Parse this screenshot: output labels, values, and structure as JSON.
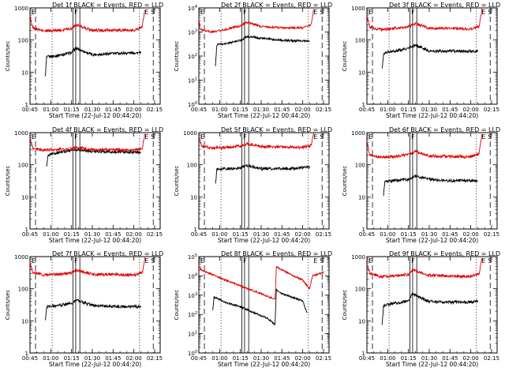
{
  "chart_data": [
    {
      "type": "line",
      "title": "Det 1f BLACK = Events, RED = LLD",
      "xlabel": "Start Time (22-Jul-12 00:44:20)",
      "ylabel": "Counts/sec",
      "yscale": "log",
      "ylim": [
        1,
        1000
      ],
      "xlim": [
        "00:45",
        "02:19"
      ],
      "y_tick_labels": [
        "1",
        "10",
        "100",
        "1000"
      ],
      "x_tick_labels": [
        "00:45",
        "01:00",
        "01:15",
        "01:30",
        "01:45",
        "02:00",
        "02:15"
      ],
      "markers": [
        "E",
        "S"
      ],
      "series": [
        {
          "name": "Events",
          "color": "#000000",
          "x": [
            "00:56",
            "00:57",
            "00:58",
            "01:05",
            "01:15",
            "01:18",
            "01:30",
            "01:45",
            "02:00",
            "02:05"
          ],
          "y": [
            7,
            28,
            30,
            33,
            40,
            55,
            35,
            38,
            40,
            40
          ]
        },
        {
          "name": "LLD",
          "color": "#e00000",
          "x": [
            "00:44",
            "00:47",
            "00:55",
            "01:05",
            "01:15",
            "01:18",
            "01:30",
            "01:45",
            "02:00",
            "02:06",
            "02:08"
          ],
          "y": [
            900,
            240,
            190,
            200,
            230,
            300,
            200,
            200,
            200,
            260,
            900
          ]
        }
      ]
    },
    {
      "type": "line",
      "title": "Det 2f BLACK = Events, RED = LLD",
      "xlabel": "Start Time (22-Jul-12 00:44:20)",
      "ylabel": "Counts/sec",
      "yscale": "log",
      "ylim": [
        1,
        10000
      ],
      "xlim": [
        "00:45",
        "02:19"
      ],
      "y_tick_labels": [
        "1",
        "10",
        "100",
        "1000",
        "10000"
      ],
      "x_tick_labels": [
        "00:45",
        "01:00",
        "01:15",
        "01:30",
        "01:45",
        "02:00",
        "02:15"
      ],
      "markers": [
        "E",
        "S"
      ],
      "series": [
        {
          "name": "Events",
          "color": "#000000",
          "x": [
            "00:57",
            "00:58",
            "01:05",
            "01:15",
            "01:20",
            "01:30",
            "01:45",
            "02:00",
            "02:05"
          ],
          "y": [
            40,
            300,
            330,
            450,
            650,
            550,
            450,
            420,
            420
          ]
        },
        {
          "name": "LLD",
          "color": "#e00000",
          "x": [
            "00:44",
            "00:46",
            "00:55",
            "01:05",
            "01:15",
            "01:20",
            "01:30",
            "01:45",
            "02:00",
            "02:06",
            "02:08"
          ],
          "y": [
            9000,
            1300,
            1000,
            1300,
            1800,
            2600,
            1700,
            1500,
            1500,
            2000,
            9000
          ]
        }
      ]
    },
    {
      "type": "line",
      "title": "Det 3f BLACK = Events, RED = LLD",
      "xlabel": "Start Time (22-Jul-12 00:44:20)",
      "ylabel": "Counts/sec",
      "yscale": "log",
      "ylim": [
        1,
        1000
      ],
      "xlim": [
        "00:45",
        "02:19"
      ],
      "y_tick_labels": [
        "1",
        "10",
        "100",
        "1000"
      ],
      "x_tick_labels": [
        "00:45",
        "01:00",
        "01:15",
        "01:30",
        "01:45",
        "02:00",
        "02:15"
      ],
      "markers": [
        "E",
        "S"
      ],
      "series": [
        {
          "name": "Events",
          "color": "#000000",
          "x": [
            "00:56",
            "00:57",
            "00:58",
            "01:05",
            "01:15",
            "01:20",
            "01:30",
            "01:45",
            "02:00",
            "02:05"
          ],
          "y": [
            12,
            35,
            40,
            45,
            55,
            70,
            45,
            45,
            45,
            45
          ]
        },
        {
          "name": "LLD",
          "color": "#e00000",
          "x": [
            "00:44",
            "00:47",
            "00:55",
            "01:05",
            "01:15",
            "01:20",
            "01:30",
            "01:45",
            "02:00",
            "02:06",
            "02:08"
          ],
          "y": [
            900,
            250,
            210,
            230,
            260,
            330,
            230,
            230,
            220,
            260,
            900
          ]
        }
      ]
    },
    {
      "type": "line",
      "title": "Det 4f BLACK = Events, RED = LLD",
      "xlabel": "Start Time (22-Jul-12 00:44:20)",
      "ylabel": "Counts/sec",
      "yscale": "log",
      "ylim": [
        1,
        1000
      ],
      "xlim": [
        "00:45",
        "02:19"
      ],
      "y_tick_labels": [
        "1",
        "10",
        "100",
        "1000"
      ],
      "x_tick_labels": [
        "00:45",
        "01:00",
        "01:15",
        "01:30",
        "01:45",
        "02:00",
        "02:15"
      ],
      "markers": [
        "E",
        "S"
      ],
      "series": [
        {
          "name": "Events",
          "color": "#000000",
          "x": [
            "00:57",
            "00:58",
            "01:05",
            "01:15",
            "01:20",
            "01:30",
            "01:45",
            "02:00",
            "02:05"
          ],
          "y": [
            80,
            200,
            240,
            280,
            300,
            260,
            250,
            250,
            240
          ]
        },
        {
          "name": "LLD",
          "color": "#e00000",
          "x": [
            "00:44",
            "00:47",
            "00:55",
            "01:05",
            "01:15",
            "01:20",
            "01:30",
            "01:45",
            "02:00",
            "02:06",
            "02:08"
          ],
          "y": [
            900,
            330,
            290,
            300,
            320,
            340,
            300,
            290,
            290,
            310,
            900
          ]
        }
      ]
    },
    {
      "type": "line",
      "title": "Det 5f BLACK = Events, RED = LLD",
      "xlabel": "Start Time (22-Jul-12 00:44:20)",
      "ylabel": "Counts/sec",
      "yscale": "log",
      "ylim": [
        1,
        1000
      ],
      "xlim": [
        "00:45",
        "02:19"
      ],
      "y_tick_labels": [
        "1",
        "10",
        "100",
        "1000"
      ],
      "x_tick_labels": [
        "00:45",
        "01:00",
        "01:15",
        "01:30",
        "01:45",
        "02:00",
        "02:15"
      ],
      "markers": [
        "E",
        "S"
      ],
      "series": [
        {
          "name": "Events",
          "color": "#000000",
          "x": [
            "00:57",
            "00:58",
            "01:05",
            "01:15",
            "01:20",
            "01:30",
            "01:45",
            "02:00",
            "02:05"
          ],
          "y": [
            25,
            70,
            75,
            80,
            95,
            75,
            75,
            80,
            85
          ]
        },
        {
          "name": "LLD",
          "color": "#e00000",
          "x": [
            "00:44",
            "00:47",
            "00:55",
            "01:05",
            "01:15",
            "01:20",
            "01:30",
            "01:45",
            "02:00",
            "02:06",
            "02:08"
          ],
          "y": [
            900,
            380,
            330,
            350,
            380,
            450,
            370,
            360,
            350,
            400,
            900
          ]
        }
      ]
    },
    {
      "type": "line",
      "title": "Det 6f BLACK = Events, RED = LLD",
      "xlabel": "Start Time (22-Jul-12 00:44:20)",
      "ylabel": "Counts/sec",
      "yscale": "log",
      "ylim": [
        1,
        1000
      ],
      "xlim": [
        "00:45",
        "02:19"
      ],
      "y_tick_labels": [
        "1",
        "10",
        "100",
        "1000"
      ],
      "x_tick_labels": [
        "00:45",
        "01:00",
        "01:15",
        "01:30",
        "01:45",
        "02:00",
        "02:15"
      ],
      "markers": [
        "E",
        "S"
      ],
      "series": [
        {
          "name": "Events",
          "color": "#000000",
          "x": [
            "00:57",
            "00:58",
            "01:05",
            "01:15",
            "01:20",
            "01:30",
            "01:45",
            "02:00",
            "02:05"
          ],
          "y": [
            12,
            30,
            32,
            35,
            45,
            35,
            32,
            32,
            33
          ]
        },
        {
          "name": "LLD",
          "color": "#e00000",
          "x": [
            "00:44",
            "00:47",
            "00:55",
            "01:05",
            "01:15",
            "01:20",
            "01:30",
            "01:45",
            "02:00",
            "02:06",
            "02:08"
          ],
          "y": [
            900,
            200,
            170,
            180,
            210,
            260,
            190,
            180,
            180,
            220,
            900
          ]
        }
      ]
    },
    {
      "type": "line",
      "title": "Det 7f BLACK = Events, RED = LLD",
      "xlabel": "Start Time (22-Jul-12 00:44:20)",
      "ylabel": "Counts/sec",
      "yscale": "log",
      "ylim": [
        1,
        1000
      ],
      "xlim": [
        "00:45",
        "02:19"
      ],
      "y_tick_labels": [
        "1",
        "10",
        "100",
        "1000"
      ],
      "x_tick_labels": [
        "00:45",
        "01:00",
        "01:15",
        "01:30",
        "01:45",
        "02:00",
        "02:15"
      ],
      "markers": [
        "E",
        "S"
      ],
      "series": [
        {
          "name": "Events",
          "color": "#000000",
          "x": [
            "00:56",
            "00:57",
            "00:58",
            "01:05",
            "01:15",
            "01:18",
            "01:30",
            "01:45",
            "02:00",
            "02:05"
          ],
          "y": [
            10,
            25,
            28,
            30,
            35,
            45,
            30,
            28,
            28,
            28
          ]
        },
        {
          "name": "LLD",
          "color": "#e00000",
          "x": [
            "00:44",
            "00:47",
            "00:55",
            "01:05",
            "01:15",
            "01:18",
            "01:30",
            "01:45",
            "02:00",
            "02:06",
            "02:08"
          ],
          "y": [
            900,
            330,
            270,
            280,
            310,
            380,
            280,
            280,
            270,
            310,
            900
          ]
        }
      ]
    },
    {
      "type": "line",
      "title": "Det 8f BLACK = Events, RED = LLD",
      "xlabel": "Start Time (22-Jul-12 00:44:20)",
      "ylabel": "Counts/sec",
      "yscale": "log",
      "ylim": [
        1,
        100000
      ],
      "xlim": [
        "00:45",
        "02:19"
      ],
      "y_tick_labels": [
        "1",
        "10",
        "100",
        "1000",
        "10000",
        "100000"
      ],
      "x_tick_labels": [
        "00:45",
        "01:00",
        "01:15",
        "01:30",
        "01:45",
        "02:00",
        "02:15"
      ],
      "markers": [
        "E",
        "S"
      ],
      "series": [
        {
          "name": "Events",
          "color": "#000000",
          "x": [
            "00:55",
            "00:56",
            "01:05",
            "01:15",
            "01:25",
            "01:35",
            "01:40",
            "01:41",
            "01:45",
            "02:00",
            "02:03"
          ],
          "y": [
            150,
            800,
            400,
            250,
            120,
            60,
            30,
            2000,
            1200,
            500,
            120
          ]
        },
        {
          "name": "LLD",
          "color": "#e00000",
          "x": [
            "00:44",
            "00:47",
            "01:00",
            "01:15",
            "01:30",
            "01:40",
            "01:41",
            "01:45",
            "02:00",
            "02:05",
            "02:07",
            "02:15"
          ],
          "y": [
            40000,
            20000,
            8000,
            3000,
            1200,
            600,
            30000,
            20000,
            6000,
            2000,
            10000,
            15000
          ]
        }
      ]
    },
    {
      "type": "line",
      "title": "Det 9f BLACK = Events, RED = LLD",
      "xlabel": "Start Time (22-Jul-12 00:44:20)",
      "ylabel": "Counts/sec",
      "yscale": "log",
      "ylim": [
        1,
        1000
      ],
      "xlim": [
        "00:45",
        "02:19"
      ],
      "y_tick_labels": [
        "1",
        "10",
        "100",
        "1000"
      ],
      "x_tick_labels": [
        "00:45",
        "01:00",
        "01:15",
        "01:30",
        "01:45",
        "02:00",
        "02:15"
      ],
      "markers": [
        "E",
        "S"
      ],
      "series": [
        {
          "name": "Events",
          "color": "#000000",
          "x": [
            "00:56",
            "00:57",
            "00:58",
            "01:05",
            "01:15",
            "01:18",
            "01:30",
            "01:45",
            "02:00",
            "02:05"
          ],
          "y": [
            8,
            28,
            32,
            35,
            42,
            70,
            40,
            38,
            38,
            40
          ]
        },
        {
          "name": "LLD",
          "color": "#e00000",
          "x": [
            "00:44",
            "00:47",
            "00:55",
            "01:05",
            "01:15",
            "01:18",
            "01:30",
            "01:45",
            "02:00",
            "02:06",
            "02:08"
          ],
          "y": [
            900,
            300,
            240,
            250,
            280,
            380,
            260,
            250,
            240,
            280,
            900
          ]
        }
      ]
    }
  ]
}
